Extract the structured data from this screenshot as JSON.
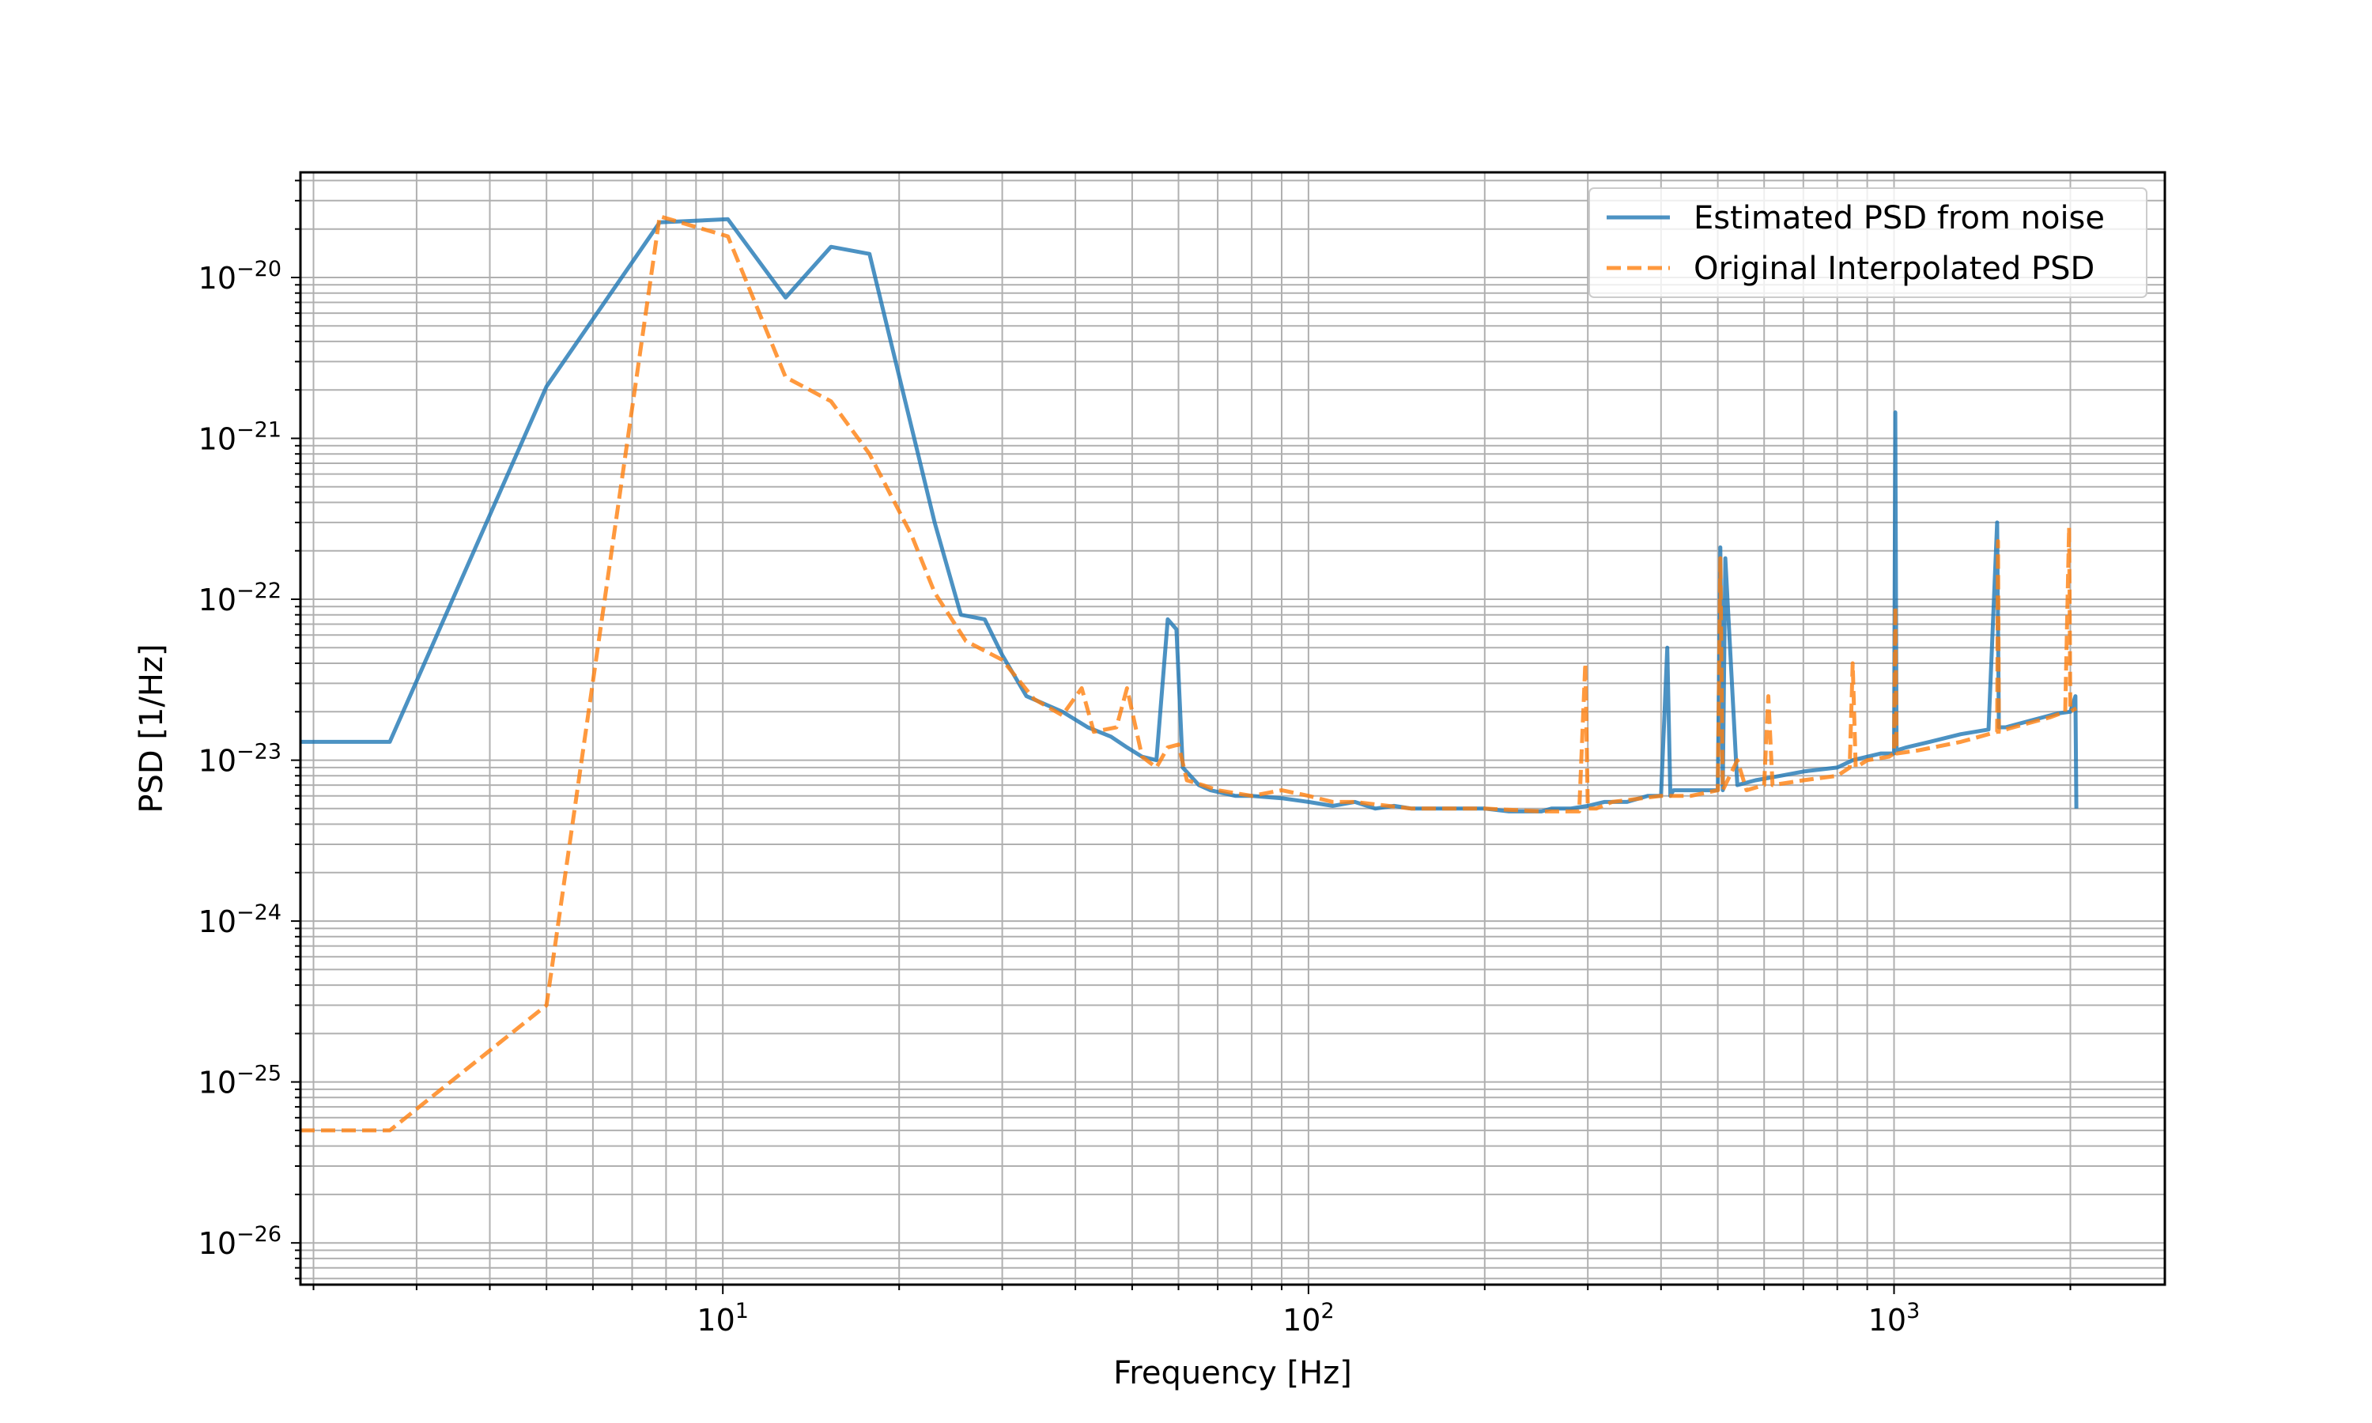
{
  "chart_data": {
    "type": "line",
    "title": "",
    "xlabel": "Frequency [Hz]",
    "ylabel": "PSD [1/Hz]",
    "xscale": "log",
    "yscale": "log",
    "xlim": [
      1.9,
      2900
    ],
    "ylim": [
      5.5e-27,
      4.5e-20
    ],
    "grid": "major and minor, both axes",
    "legend_position": "top-right",
    "x_ticks": [
      {
        "base": "10",
        "exp": "1",
        "value": 10
      },
      {
        "base": "10",
        "exp": "2",
        "value": 100
      },
      {
        "base": "10",
        "exp": "3",
        "value": 1000
      }
    ],
    "y_ticks": [
      {
        "base": "10",
        "exp": "−20",
        "value": 1e-20
      },
      {
        "base": "10",
        "exp": "−21",
        "value": 1e-21
      },
      {
        "base": "10",
        "exp": "−22",
        "value": 1e-22
      },
      {
        "base": "10",
        "exp": "−23",
        "value": 1e-23
      },
      {
        "base": "10",
        "exp": "−24",
        "value": 1e-24
      },
      {
        "base": "10",
        "exp": "−25",
        "value": 1e-25
      },
      {
        "base": "10",
        "exp": "−26",
        "value": 1e-26
      }
    ],
    "series": [
      {
        "name": "Estimated PSD from noise",
        "color": "#1f77b4",
        "style": "solid",
        "x": [
          1.9,
          2.7,
          5.0,
          7.8,
          10.2,
          12.8,
          15.3,
          17.8,
          23.0,
          25.5,
          28.0,
          30.0,
          33.0,
          38.0,
          42.0,
          46.0,
          49.0,
          52.0,
          55.0,
          57.5,
          59.5,
          61.0,
          65.0,
          68.0,
          75.0,
          80.0,
          90.0,
          100,
          110,
          120,
          130,
          140,
          150,
          170,
          190,
          200,
          220,
          250,
          260,
          280,
          300,
          320,
          350,
          380,
          400,
          410,
          415,
          420,
          450,
          480,
          500,
          505,
          510,
          515,
          540,
          580,
          640,
          700,
          800,
          850,
          900,
          950,
          1000,
          1005,
          1010,
          1050,
          1150,
          1300,
          1450,
          1500,
          1510,
          1550,
          1700,
          1900,
          2000,
          2040,
          2048
        ],
        "y": [
          1.3e-23,
          1.3e-23,
          2.1e-21,
          2.2e-20,
          2.3e-20,
          7.5e-21,
          1.55e-20,
          1.4e-20,
          3e-22,
          8e-23,
          7.5e-23,
          4.5e-23,
          2.5e-23,
          2e-23,
          1.6e-23,
          1.4e-23,
          1.2e-23,
          1.05e-23,
          1e-23,
          7.5e-23,
          6.5e-23,
          9e-24,
          7e-24,
          6.5e-24,
          6e-24,
          6e-24,
          5.8e-24,
          5.5e-24,
          5.2e-24,
          5.5e-24,
          5e-24,
          5.2e-24,
          5e-24,
          5e-24,
          5e-24,
          5e-24,
          4.8e-24,
          4.8e-24,
          5e-24,
          5e-24,
          5.2e-24,
          5.5e-24,
          5.5e-24,
          6e-24,
          6e-24,
          5e-23,
          6e-24,
          6.5e-24,
          6.5e-24,
          6.5e-24,
          6.5e-24,
          2.1e-22,
          6.5e-24,
          1.8e-22,
          7e-24,
          7.5e-24,
          8e-24,
          8.5e-24,
          9e-24,
          1e-23,
          1.05e-23,
          1.1e-23,
          1.1e-23,
          1.45e-21,
          1.15e-23,
          1.2e-23,
          1.3e-23,
          1.45e-23,
          1.55e-23,
          3e-22,
          1.6e-23,
          1.6e-23,
          1.75e-23,
          1.95e-23,
          2e-23,
          2.5e-23,
          5e-24
        ]
      },
      {
        "name": "Original Interpolated PSD",
        "color": "#ff7f0e",
        "style": "dashed",
        "x": [
          1.9,
          2.7,
          5.0,
          7.8,
          10.2,
          12.8,
          15.3,
          17.8,
          21.0,
          23.0,
          26.0,
          30.0,
          34.0,
          38.0,
          41.0,
          43.0,
          47.0,
          49.0,
          52.0,
          55.0,
          57.5,
          60.0,
          62.0,
          66.0,
          70.0,
          80.0,
          90.0,
          100,
          110,
          120,
          150,
          200,
          250,
          290,
          297,
          300,
          310,
          330,
          400,
          450,
          500,
          505,
          510,
          540,
          560,
          600,
          610,
          620,
          700,
          800,
          840,
          850,
          860,
          900,
          980,
          1000,
          1005,
          1010,
          1100,
          1300,
          1450,
          1500,
          1505,
          1510,
          1550,
          1700,
          1850,
          1960,
          1990,
          2000,
          2020,
          2048
        ],
        "y": [
          5e-26,
          5e-26,
          3e-25,
          2.4e-20,
          1.8e-20,
          2.4e-21,
          1.7e-21,
          8e-22,
          2.5e-22,
          1.1e-22,
          5.5e-23,
          4.2e-23,
          2.4e-23,
          1.9e-23,
          2.8e-23,
          1.5e-23,
          1.6e-23,
          2.8e-23,
          1.05e-23,
          9e-24,
          1.2e-23,
          1.25e-23,
          7.5e-24,
          7e-24,
          6.5e-24,
          6e-24,
          6.5e-24,
          6e-24,
          5.5e-24,
          5.5e-24,
          5e-24,
          5e-24,
          4.8e-24,
          4.8e-24,
          4e-23,
          5e-24,
          5e-24,
          5.5e-24,
          6e-24,
          6e-24,
          6.5e-24,
          1.8e-22,
          6.5e-24,
          1e-23,
          6.5e-24,
          7e-24,
          2.5e-23,
          7e-24,
          7.5e-24,
          8e-24,
          9e-24,
          4e-23,
          9e-24,
          1e-23,
          1.05e-23,
          1.1e-23,
          9e-23,
          1.1e-23,
          1.15e-23,
          1.3e-23,
          1.45e-23,
          1.5e-23,
          2.3e-22,
          1.5e-23,
          1.55e-23,
          1.7e-23,
          1.85e-23,
          2e-23,
          2.8e-22,
          2e-23,
          2.05e-23,
          2.1e-23
        ]
      }
    ]
  }
}
